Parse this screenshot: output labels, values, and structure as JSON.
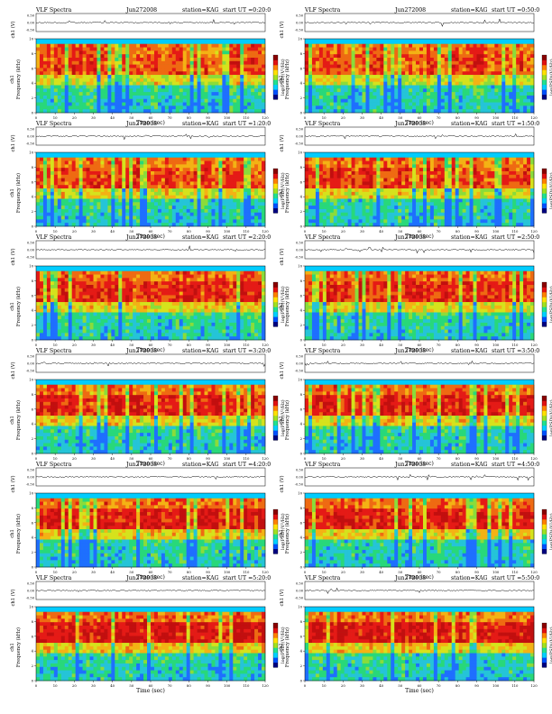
{
  "page": {
    "title_prefix": "VLF Spectra",
    "date": "Jun272008",
    "station": "station=KAG",
    "x_axis_label": "Time (sec)",
    "y_axis_label": "Frequency (kHz)",
    "waveform_label": "ch1 (V)",
    "channel_label": "ch1",
    "colorbar_label": "log(PSD)(V²/Hz)"
  },
  "panels": [
    {
      "col": 0,
      "row": 0,
      "start_ut": "start UT =0:20:0"
    },
    {
      "col": 1,
      "row": 0,
      "start_ut": "start UT =0:50:0"
    },
    {
      "col": 0,
      "row": 1,
      "start_ut": "start UT =1:20:0"
    },
    {
      "col": 1,
      "row": 1,
      "start_ut": "start UT =1:50:0"
    },
    {
      "col": 0,
      "row": 2,
      "start_ut": "start UT =2:20:0"
    },
    {
      "col": 1,
      "row": 2,
      "start_ut": "start UT =2:50:0"
    },
    {
      "col": 0,
      "row": 3,
      "start_ut": "start UT =3:20:0"
    },
    {
      "col": 1,
      "row": 3,
      "start_ut": "start UT =3:50:0"
    },
    {
      "col": 0,
      "row": 4,
      "start_ut": "start UT =4:20:0"
    },
    {
      "col": 1,
      "row": 4,
      "start_ut": "start UT =4:50:0"
    },
    {
      "col": 0,
      "row": 5,
      "start_ut": "start UT =5:20:0"
    },
    {
      "col": 1,
      "row": 5,
      "start_ut": "start UT =5:50:0"
    }
  ],
  "chart_data": {
    "type": "heatmap",
    "description_kind": "spectrogram grid",
    "x_axis": {
      "label": "Time (sec)",
      "range": [
        0,
        120
      ],
      "ticks": [
        "0",
        "10",
        "20",
        "30",
        "40",
        "50",
        "60",
        "70",
        "80",
        "90",
        "100",
        "110",
        "120"
      ]
    },
    "y_axis": {
      "label": "Frequency (kHz)",
      "range": [
        0,
        10
      ],
      "ticks": [
        "0",
        "2",
        "4",
        "6",
        "8",
        "10"
      ]
    },
    "waveform_axis": {
      "label": "ch1 (V)",
      "ticks": [
        "0.50",
        "0.00",
        "-0.50"
      ]
    },
    "colorbar": {
      "label": "log(PSD)(V²/Hz)",
      "colors": [
        "#00007f",
        "#0050ff",
        "#00d0ff",
        "#20e090",
        "#a0e020",
        "#ffe000",
        "#ff8000",
        "#e01010",
        "#8a0000"
      ]
    },
    "grid": false,
    "legend": "none",
    "colors": {
      "background_band": "#00ccff",
      "low": "#28d87a",
      "mid": "#d6e21c",
      "high": "#e51a16",
      "sparse": "#1e6fff"
    }
  }
}
